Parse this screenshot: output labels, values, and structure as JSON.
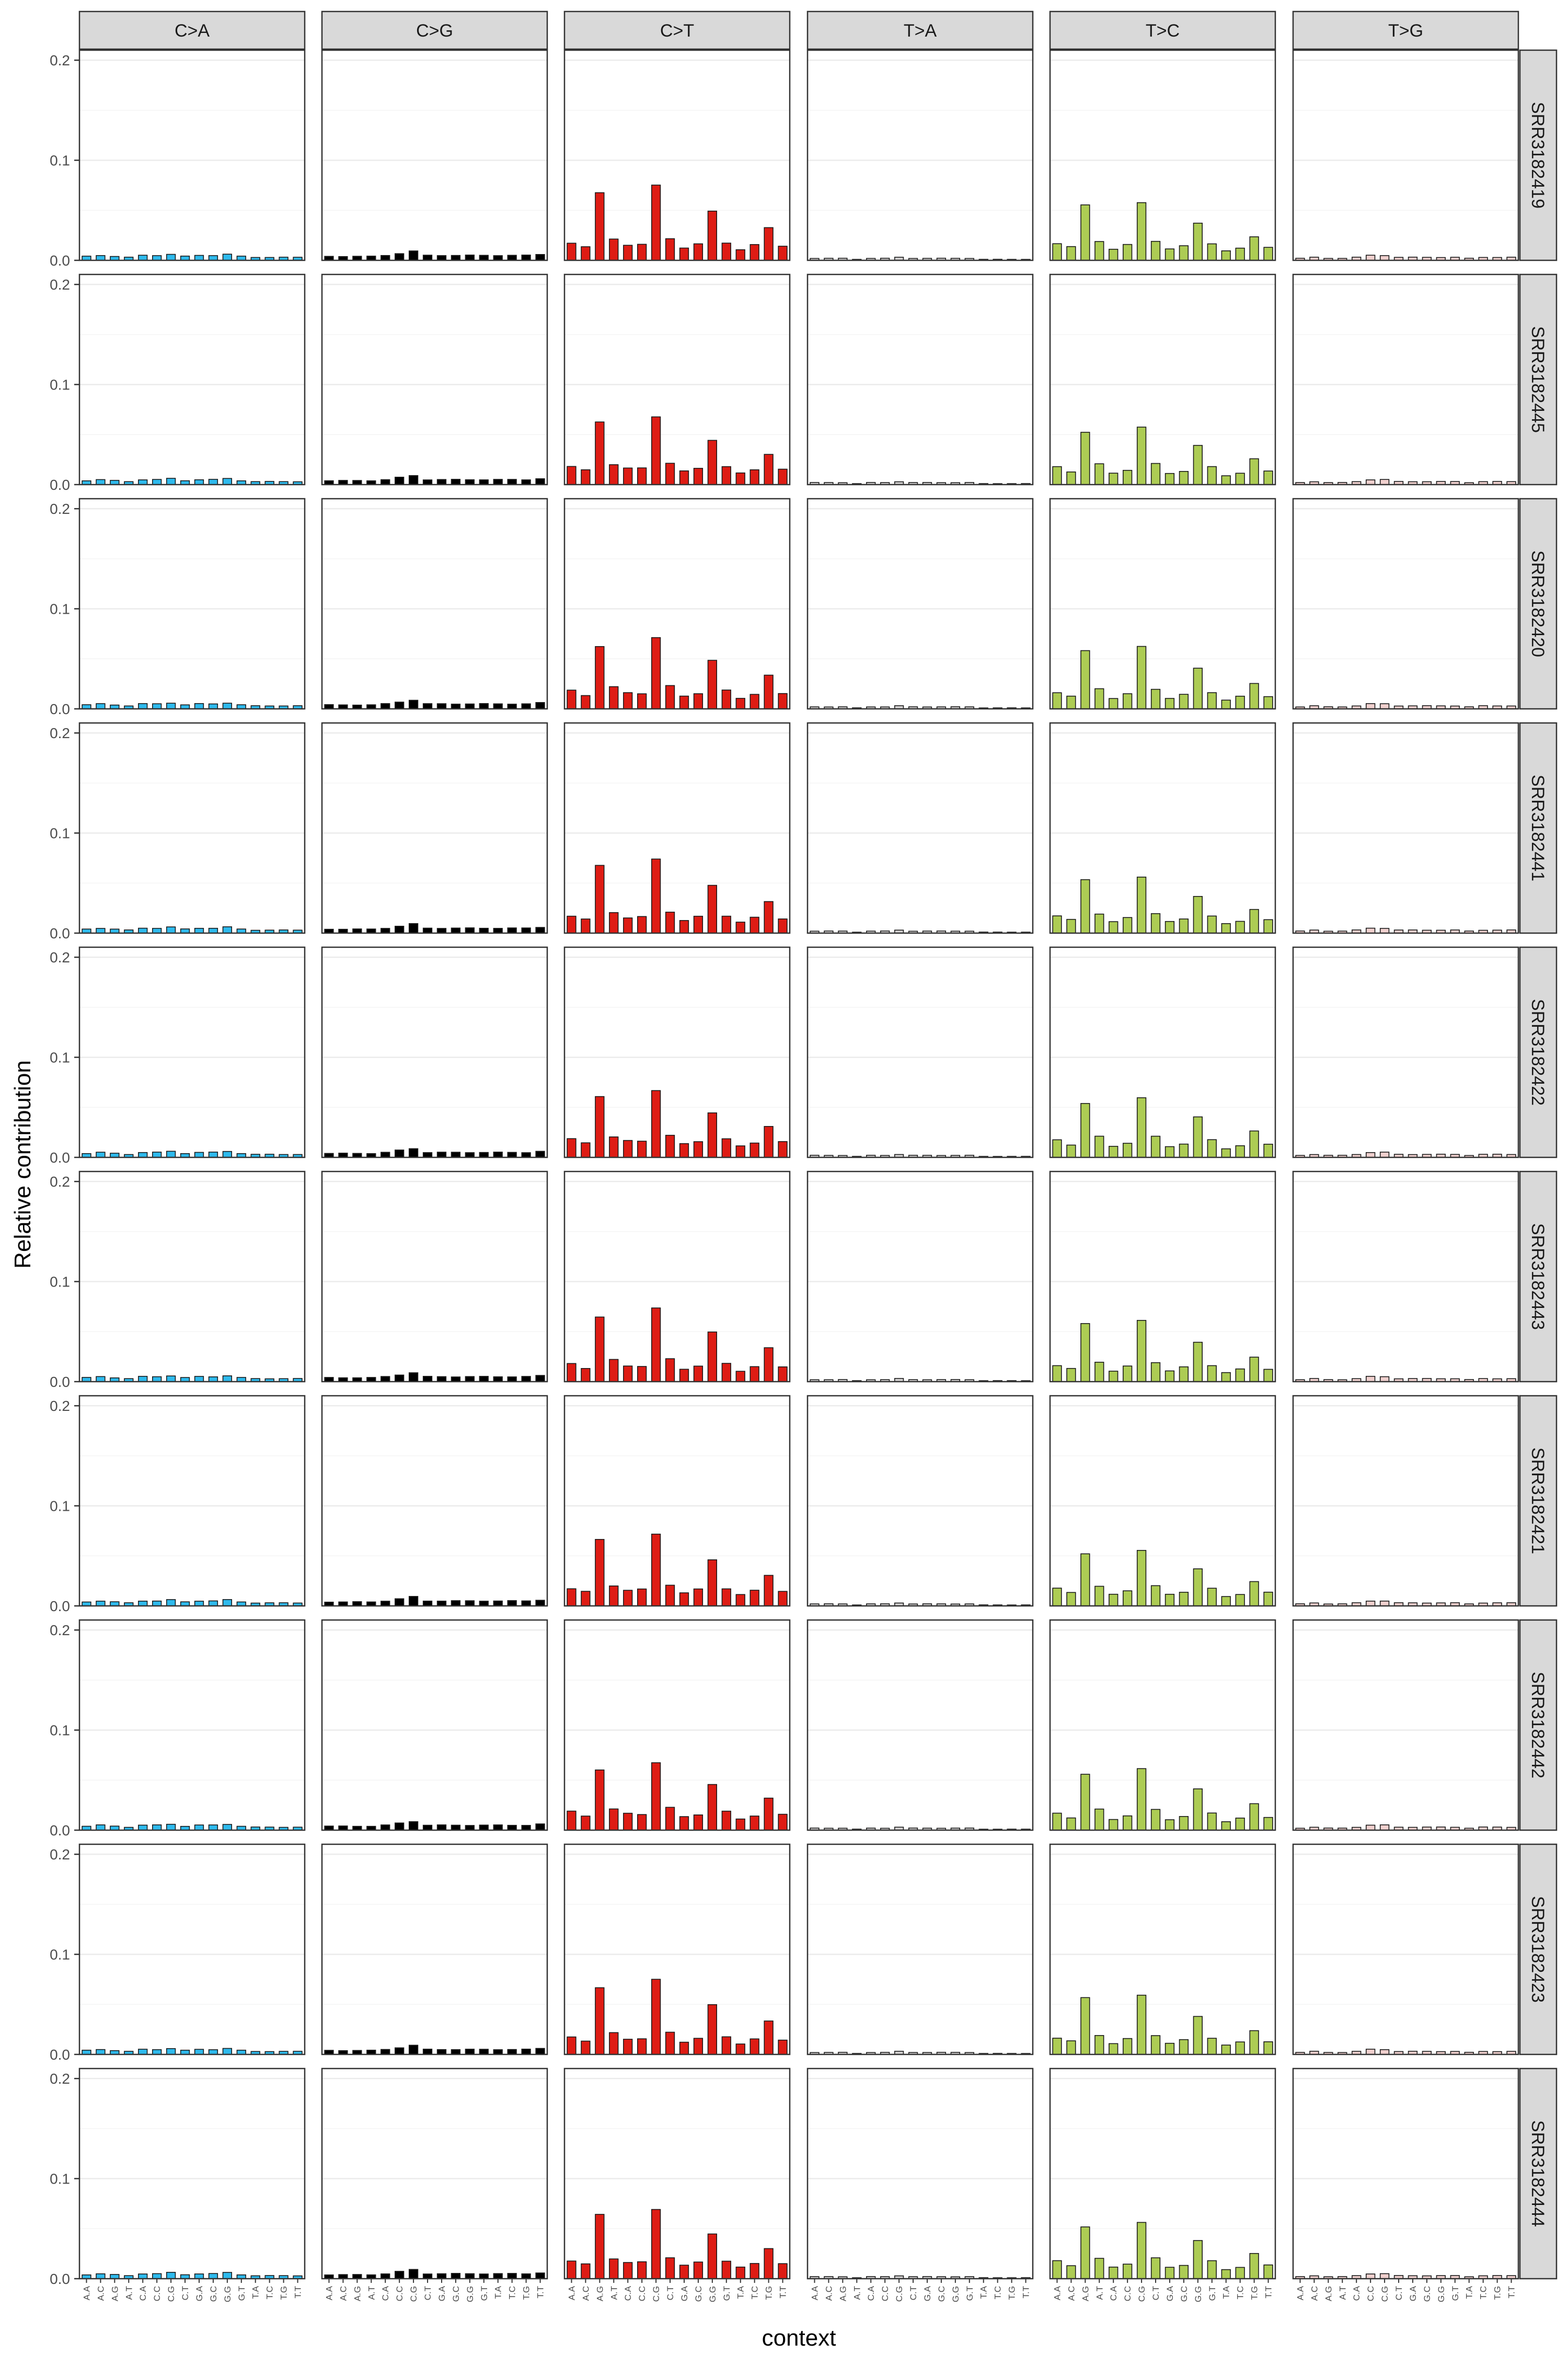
{
  "chart_data": {
    "type": "bar",
    "xlabel": "context",
    "ylabel": "Relative contribution",
    "ylim": [
      0,
      0.21
    ],
    "y_ticks": [
      "0.0",
      "0.1",
      "0.2"
    ],
    "y_tick_values": [
      0,
      0.1,
      0.2
    ],
    "grid": true,
    "contexts": [
      "A.A",
      "A.C",
      "A.G",
      "A.T",
      "C.A",
      "C.C",
      "C.G",
      "C.T",
      "G.A",
      "G.C",
      "G.G",
      "G.T",
      "T.A",
      "T.C",
      "T.G",
      "T.T"
    ],
    "mutation_types": [
      {
        "label": "C>A",
        "color": "#2EBAED"
      },
      {
        "label": "C>G",
        "color": "#000000"
      },
      {
        "label": "C>T",
        "color": "#DE1C14"
      },
      {
        "label": "T>A",
        "color": "#D4D2D2"
      },
      {
        "label": "T>C",
        "color": "#ADCC54"
      },
      {
        "label": "T>G",
        "color": "#F0D0CE"
      }
    ],
    "samples": [
      "SRR3182419",
      "SRR3182445",
      "SRR3182420",
      "SRR3182441",
      "SRR3182422",
      "SRR3182443",
      "SRR3182421",
      "SRR3182442",
      "SRR3182423",
      "SRR3182444"
    ],
    "base_profile": {
      "C>A": [
        0.004,
        0.005,
        0.004,
        0.003,
        0.005,
        0.005,
        0.006,
        0.004,
        0.005,
        0.005,
        0.006,
        0.004,
        0.003,
        0.003,
        0.003,
        0.003
      ],
      "C>G": [
        0.004,
        0.004,
        0.004,
        0.004,
        0.005,
        0.007,
        0.009,
        0.005,
        0.005,
        0.005,
        0.005,
        0.005,
        0.005,
        0.005,
        0.005,
        0.006
      ],
      "C>T": [
        0.018,
        0.014,
        0.064,
        0.021,
        0.016,
        0.016,
        0.071,
        0.022,
        0.013,
        0.016,
        0.047,
        0.018,
        0.011,
        0.015,
        0.032,
        0.015
      ],
      "T>A": [
        0.002,
        0.002,
        0.002,
        0.001,
        0.002,
        0.002,
        0.003,
        0.002,
        0.002,
        0.002,
        0.002,
        0.002,
        0.001,
        0.001,
        0.001,
        0.001
      ],
      "T>C": [
        0.017,
        0.013,
        0.055,
        0.02,
        0.011,
        0.015,
        0.059,
        0.02,
        0.011,
        0.014,
        0.039,
        0.017,
        0.009,
        0.012,
        0.025,
        0.013
      ],
      "T>G": [
        0.002,
        0.003,
        0.002,
        0.002,
        0.003,
        0.005,
        0.005,
        0.003,
        0.003,
        0.003,
        0.003,
        0.003,
        0.002,
        0.003,
        0.003,
        0.003
      ]
    }
  }
}
